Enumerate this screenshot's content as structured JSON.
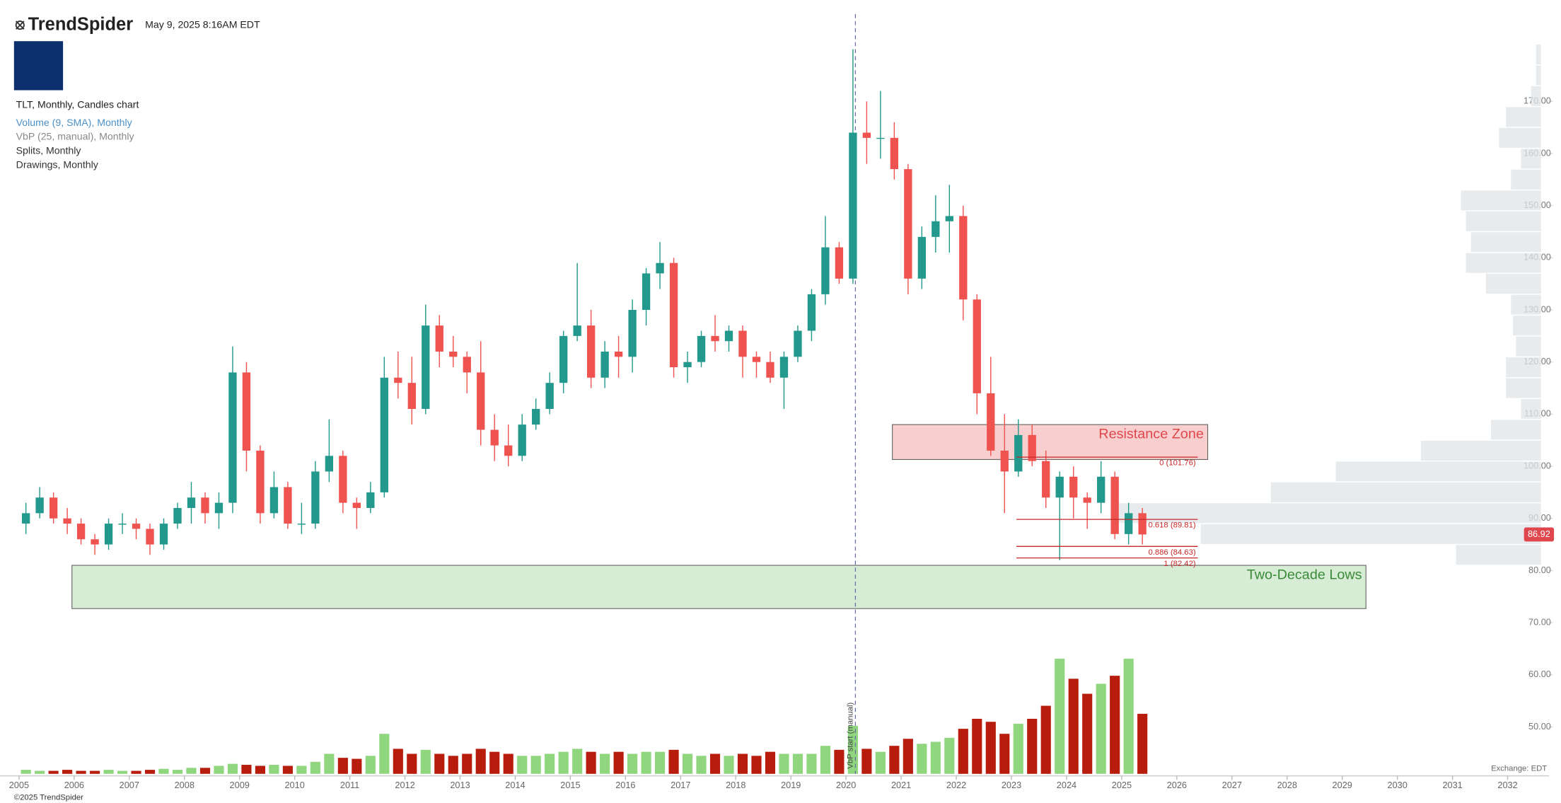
{
  "chart_data": {
    "type": "candlestick",
    "brand": "TrendSpider",
    "timestamp": "May 9, 2025 8:16AM EDT",
    "title": "TLT, Monthly, Candles chart",
    "legend_items": [
      "Volume (9, SMA), Monthly",
      "VbP (25, manual), Monthly",
      "Splits, Monthly",
      "Drawings, Monthly"
    ],
    "x": [
      2005.125,
      2005.375,
      2005.625,
      2005.875,
      2006.125,
      2006.375,
      2006.625,
      2006.875,
      2007.125,
      2007.375,
      2007.625,
      2007.875,
      2008.125,
      2008.375,
      2008.625,
      2008.875,
      2009.125,
      2009.375,
      2009.625,
      2009.875,
      2010.125,
      2010.375,
      2010.625,
      2010.875,
      2011.125,
      2011.375,
      2011.625,
      2011.875,
      2012.125,
      2012.375,
      2012.625,
      2012.875,
      2013.125,
      2013.375,
      2013.625,
      2013.875,
      2014.125,
      2014.375,
      2014.625,
      2014.875,
      2015.125,
      2015.375,
      2015.625,
      2015.875,
      2016.125,
      2016.375,
      2016.625,
      2016.875,
      2017.125,
      2017.375,
      2017.625,
      2017.875,
      2018.125,
      2018.375,
      2018.625,
      2018.875,
      2019.125,
      2019.375,
      2019.625,
      2019.875,
      2020.125,
      2020.375,
      2020.625,
      2020.875,
      2021.125,
      2021.375,
      2021.625,
      2021.875,
      2022.125,
      2022.375,
      2022.625,
      2022.875,
      2023.125,
      2023.375,
      2023.625,
      2023.875,
      2024.125,
      2024.375,
      2024.625,
      2024.875,
      2025.125,
      2025.375
    ],
    "open": [
      89,
      91,
      94,
      90,
      89,
      86,
      85,
      89,
      89,
      88,
      85,
      89,
      92,
      94,
      91,
      93,
      118,
      103,
      91,
      96,
      89,
      89,
      99,
      102,
      93,
      92,
      95,
      117,
      116,
      111,
      127,
      122,
      121,
      118,
      107,
      104,
      102,
      108,
      111,
      116,
      125,
      127,
      117,
      122,
      121,
      130,
      137,
      139,
      119,
      120,
      125,
      124,
      126,
      121,
      120,
      117,
      121,
      126,
      133,
      142,
      136,
      164,
      163,
      163,
      157,
      136,
      144,
      147,
      148,
      132,
      114,
      103,
      99,
      106,
      101,
      94,
      98,
      94,
      93,
      98,
      87,
      91
    ],
    "high": [
      93,
      96,
      95,
      92,
      90,
      87,
      90,
      91,
      90,
      89,
      90,
      93,
      97,
      95,
      95,
      123,
      120,
      104,
      99,
      97,
      93,
      101,
      109,
      103,
      94,
      97,
      121,
      122,
      121,
      131,
      129,
      125,
      122,
      124,
      110,
      108,
      110,
      113,
      118,
      126,
      139,
      130,
      124,
      125,
      132,
      138,
      143,
      140,
      122,
      126,
      129,
      127,
      127,
      122,
      122,
      122,
      127,
      134,
      148,
      143,
      180,
      170,
      172,
      166,
      158,
      146,
      152,
      154,
      150,
      133,
      121,
      110,
      109,
      108,
      103,
      99,
      100,
      95,
      101,
      99,
      93,
      92
    ],
    "low": [
      87,
      90,
      89,
      87,
      85,
      83,
      84,
      87,
      86,
      83,
      84,
      88,
      89,
      89,
      88,
      91,
      99,
      89,
      90,
      88,
      87,
      88,
      97,
      91,
      88,
      91,
      94,
      113,
      108,
      110,
      119,
      119,
      114,
      104,
      101,
      100,
      101,
      107,
      110,
      114,
      124,
      115,
      115,
      117,
      118,
      127,
      134,
      117,
      116,
      119,
      122,
      122,
      117,
      117,
      116,
      111,
      120,
      124,
      131,
      135,
      135,
      158,
      159,
      155,
      133,
      134,
      141,
      141,
      128,
      110,
      102,
      91,
      98,
      100,
      92,
      82,
      90,
      88,
      91,
      86,
      85,
      85
    ],
    "close": [
      91,
      94,
      90,
      89,
      86,
      85,
      89,
      89,
      88,
      85,
      89,
      92,
      94,
      91,
      93,
      118,
      103,
      91,
      96,
      89,
      89,
      99,
      102,
      93,
      92,
      95,
      117,
      116,
      111,
      127,
      122,
      121,
      118,
      107,
      104,
      102,
      108,
      111,
      116,
      125,
      127,
      117,
      122,
      121,
      130,
      137,
      139,
      119,
      120,
      125,
      124,
      126,
      121,
      120,
      117,
      121,
      126,
      133,
      142,
      136,
      164,
      163,
      163,
      157,
      136,
      144,
      147,
      148,
      132,
      114,
      103,
      99,
      106,
      101,
      94,
      98,
      94,
      93,
      98,
      87,
      91,
      86.92
    ],
    "volume": [
      4,
      3,
      3,
      4,
      3,
      3,
      4,
      3,
      3,
      4,
      5,
      4,
      6,
      6,
      8,
      10,
      9,
      8,
      9,
      8,
      8,
      12,
      20,
      16,
      15,
      18,
      40,
      25,
      20,
      24,
      20,
      18,
      20,
      25,
      22,
      20,
      18,
      18,
      20,
      22,
      25,
      22,
      20,
      22,
      20,
      22,
      22,
      24,
      20,
      18,
      20,
      18,
      20,
      18,
      22,
      20,
      20,
      20,
      28,
      24,
      48,
      25,
      22,
      28,
      35,
      30,
      32,
      36,
      45,
      55,
      52,
      40,
      50,
      55,
      68,
      115,
      95,
      80,
      90,
      98,
      115,
      60
    ],
    "volume_ylim": [
      0,
      125
    ],
    "colors": {
      "up": "#22998c",
      "down": "#ef5350",
      "volume_up": "#8fd67e",
      "volume_down": "#b71c0c"
    },
    "last_price": 86.92,
    "xlim": [
      2004.655,
      2032.75
    ],
    "xticks": [
      2005,
      2006,
      2007,
      2008,
      2009,
      2010,
      2011,
      2012,
      2013,
      2014,
      2015,
      2016,
      2017,
      2018,
      2019,
      2020,
      2021,
      2022,
      2023,
      2024,
      2025,
      2026,
      2027,
      2028,
      2029,
      2030,
      2031,
      2032
    ],
    "ylim": [
      41,
      187.5
    ],
    "yticks": [
      {
        "value": 50,
        "label": "50.00"
      },
      {
        "value": 60,
        "label": "60.00"
      },
      {
        "value": 70,
        "label": "70.00"
      },
      {
        "value": 80,
        "label": "80.00"
      },
      {
        "value": 90,
        "label": "90.00"
      },
      {
        "value": 100,
        "label": "100.00"
      },
      {
        "value": 110,
        "label": "110.00"
      },
      {
        "value": 120,
        "label": "120.00"
      },
      {
        "value": 130,
        "label": "130.00"
      },
      {
        "value": 140,
        "label": "140.00"
      },
      {
        "value": 150,
        "label": "150.00"
      },
      {
        "value": 160,
        "label": "160.00"
      },
      {
        "value": 170,
        "label": "170.00"
      }
    ],
    "zones": [
      {
        "label": "Resistance Zone",
        "x": [
          2020.84,
          2026.56
        ],
        "y": [
          101.3,
          108.0
        ],
        "color": "#f8c9c9",
        "text_color": "#e0474c"
      },
      {
        "label": "Two-Decade Lows",
        "x": [
          2005.96,
          2029.43
        ],
        "y": [
          72.7,
          81.0
        ],
        "color": "#d3ebd0",
        "text_color": "#3a8a3a"
      }
    ],
    "fib": {
      "x": [
        2023.09,
        2026.38
      ],
      "color": "#c62828",
      "levels": [
        {
          "value": 101.76,
          "label": "0 (101.76)"
        },
        {
          "value": 89.81,
          "label": "0.618 (89.81)"
        },
        {
          "value": 84.63,
          "label": "0.886 (84.63)"
        },
        {
          "value": 82.42,
          "label": "1 (82.42)"
        }
      ]
    },
    "vbp": {
      "start": 2020.17,
      "start_label": "VbP start (manual)",
      "bins": [
        81,
        85,
        89,
        93,
        97,
        101,
        105,
        109,
        113,
        117,
        121,
        125,
        129,
        133,
        137,
        141,
        145,
        149,
        153,
        157,
        161,
        165,
        169,
        173,
        177,
        181
      ],
      "values": [
        85,
        340,
        430,
        270,
        205,
        120,
        50,
        20,
        35,
        35,
        25,
        28,
        30,
        55,
        75,
        70,
        75,
        80,
        30,
        20,
        42,
        35,
        10,
        5,
        5
      ],
      "xlim": [
        0,
        450
      ]
    },
    "exchange": "Exchange: EDT",
    "copyright": "©2025 TrendSpider"
  }
}
